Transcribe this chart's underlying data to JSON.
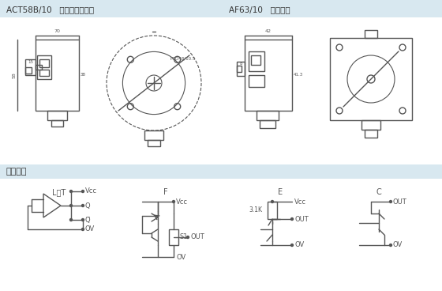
{
  "bg_color": "#ffffff",
  "header_bg": "#d8e8f0",
  "section_bg": "#d8e8f0",
  "line_color": "#555555",
  "text_color": "#333333",
  "title_left": "ACT58B/10   电缆航插侧出型",
  "title_right": "AF63/10   电缆连接",
  "section_title": "输出电路",
  "circuit_labels": [
    "L、T",
    "F",
    "E",
    "C"
  ],
  "vcc_label": "Vcc",
  "out_label": "OUT",
  "ov_label": "OV",
  "q_label": "Q",
  "qbar_label": "Q̅",
  "s1_label": "S1",
  "r_label": "3.1K",
  "line_width": 1.0,
  "fig_width": 5.6,
  "fig_height": 3.68
}
